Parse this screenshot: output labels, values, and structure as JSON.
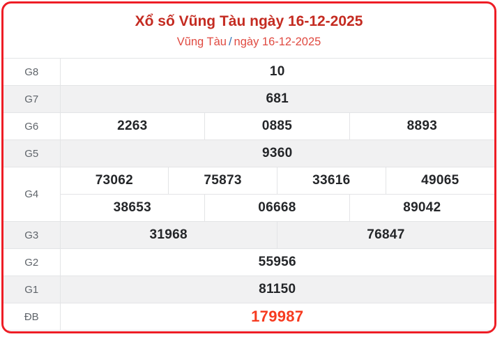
{
  "header": {
    "title": "Xổ số Vũng Tàu ngày 16-12-2025",
    "subtitle_location": "Vũng Tàu",
    "subtitle_separator": "/",
    "subtitle_date": "ngày 16-12-2025"
  },
  "colors": {
    "border_red": "#ee1d25",
    "title_red": "#c42b21",
    "subtitle_red": "#e04a41",
    "slash_blue": "#3173b4",
    "special_red": "#f63b20",
    "shaded_row_bg": "#f1f1f2",
    "divider": "#e3e4e6",
    "label_gray": "#5f646a",
    "number_black": "#242629"
  },
  "table": {
    "rows": [
      {
        "label": "G8",
        "shaded": false,
        "special": false,
        "lines": [
          [
            "10"
          ]
        ]
      },
      {
        "label": "G7",
        "shaded": true,
        "special": false,
        "lines": [
          [
            "681"
          ]
        ]
      },
      {
        "label": "G6",
        "shaded": false,
        "special": false,
        "lines": [
          [
            "2263",
            "0885",
            "8893"
          ]
        ]
      },
      {
        "label": "G5",
        "shaded": true,
        "special": false,
        "lines": [
          [
            "9360"
          ]
        ]
      },
      {
        "label": "G4",
        "shaded": false,
        "special": false,
        "lines": [
          [
            "73062",
            "75873",
            "33616",
            "49065"
          ],
          [
            "38653",
            "06668",
            "89042"
          ]
        ]
      },
      {
        "label": "G3",
        "shaded": true,
        "special": false,
        "lines": [
          [
            "31968",
            "76847"
          ]
        ]
      },
      {
        "label": "G2",
        "shaded": false,
        "special": false,
        "lines": [
          [
            "55956"
          ]
        ]
      },
      {
        "label": "G1",
        "shaded": true,
        "special": false,
        "lines": [
          [
            "81150"
          ]
        ]
      },
      {
        "label": "ĐB",
        "shaded": false,
        "special": true,
        "lines": [
          [
            "179987"
          ]
        ]
      }
    ]
  }
}
